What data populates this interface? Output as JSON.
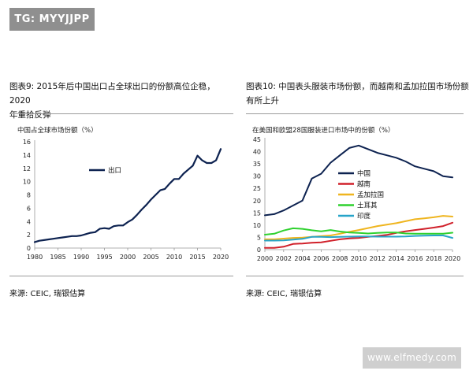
{
  "watermark": "TG: MYYJJPP",
  "website": "www.elfmedy.com",
  "left": {
    "title_line1": "图表9: 2015年后中国出口占全球出口的份额高位企稳，2020",
    "title_line2": "年重拾反弹",
    "source": "来源: CEIC, 瑞银估算"
  },
  "right": {
    "title_line1": "图表10: 中国表头服装市场份额，而越南和孟加拉国市场份额",
    "title_line2": "有所上升",
    "source": "来源: CEIC, 瑞银估算"
  },
  "chart_data": [
    {
      "type": "line",
      "title": "",
      "subtitle": "中国占全球市场份额（%）",
      "xlim": [
        1980,
        2020
      ],
      "ylim": [
        0,
        16
      ],
      "xticks": [
        1980,
        1985,
        1990,
        1995,
        2000,
        2005,
        2010,
        2015,
        2020
      ],
      "yticks": [
        0,
        2,
        4,
        6,
        8,
        10,
        12,
        14,
        16
      ],
      "grid": false,
      "legend": "center-left",
      "series": [
        {
          "name": "出口",
          "color": "#0d2250",
          "x": [
            1980,
            1981,
            1982,
            1983,
            1984,
            1985,
            1986,
            1987,
            1988,
            1989,
            1990,
            1991,
            1992,
            1993,
            1994,
            1995,
            1996,
            1997,
            1998,
            1999,
            2000,
            2001,
            2002,
            2003,
            2004,
            2005,
            2006,
            2007,
            2008,
            2009,
            2010,
            2011,
            2012,
            2013,
            2014,
            2015,
            2016,
            2017,
            2018,
            2019,
            2020
          ],
          "y": [
            0.9,
            1.1,
            1.2,
            1.3,
            1.4,
            1.5,
            1.6,
            1.7,
            1.8,
            1.8,
            1.9,
            2.1,
            2.3,
            2.4,
            2.9,
            3.0,
            2.9,
            3.3,
            3.4,
            3.4,
            3.9,
            4.3,
            5.0,
            5.8,
            6.5,
            7.3,
            8.0,
            8.7,
            8.9,
            9.7,
            10.4,
            10.4,
            11.2,
            11.8,
            12.4,
            13.9,
            13.2,
            12.8,
            12.8,
            13.2,
            14.9
          ]
        }
      ]
    },
    {
      "type": "line",
      "title": "",
      "subtitle": "在美国和欧盟28国服装进口市场中的份额（%）",
      "xlim": [
        2000,
        2020
      ],
      "ylim": [
        0,
        45
      ],
      "xticks": [
        2000,
        2002,
        2004,
        2006,
        2008,
        2010,
        2012,
        2014,
        2016,
        2018,
        2020
      ],
      "yticks": [
        0,
        5,
        10,
        15,
        20,
        25,
        30,
        35,
        40,
        45
      ],
      "grid": false,
      "legend": "center-left",
      "series": [
        {
          "name": "中国",
          "color": "#0d2250",
          "x": [
            2000,
            2001,
            2002,
            2003,
            2004,
            2005,
            2006,
            2007,
            2008,
            2009,
            2010,
            2011,
            2012,
            2013,
            2014,
            2015,
            2016,
            2017,
            2018,
            2019,
            2020
          ],
          "y": [
            14,
            14.5,
            16,
            18,
            20,
            29,
            31,
            35.5,
            38.5,
            41.5,
            42.5,
            41,
            39.5,
            38.5,
            37.5,
            36,
            34,
            33,
            32,
            30,
            29.5
          ]
        },
        {
          "name": "越南",
          "color": "#d0202a",
          "x": [
            2000,
            2001,
            2002,
            2003,
            2004,
            2005,
            2006,
            2007,
            2008,
            2009,
            2010,
            2011,
            2012,
            2013,
            2014,
            2015,
            2016,
            2017,
            2018,
            2019,
            2020
          ],
          "y": [
            0.7,
            0.7,
            1.2,
            2.3,
            2.5,
            2.8,
            3.0,
            3.6,
            4.2,
            4.6,
            4.8,
            5.2,
            5.6,
            6.0,
            6.8,
            7.5,
            8.0,
            8.5,
            9.0,
            9.6,
            11.0
          ]
        },
        {
          "name": "孟加拉国",
          "color": "#efb51f",
          "x": [
            2000,
            2001,
            2002,
            2003,
            2004,
            2005,
            2006,
            2007,
            2008,
            2009,
            2010,
            2011,
            2012,
            2013,
            2014,
            2015,
            2016,
            2017,
            2018,
            2019,
            2020
          ],
          "y": [
            4.2,
            4.2,
            4.5,
            4.8,
            4.9,
            5.2,
            5.5,
            5.8,
            6.5,
            7.3,
            8.0,
            8.8,
            9.6,
            10.2,
            10.8,
            11.6,
            12.4,
            12.8,
            13.2,
            13.8,
            13.5
          ]
        },
        {
          "name": "土耳其",
          "color": "#2fd12f",
          "x": [
            2000,
            2001,
            2002,
            2003,
            2004,
            2005,
            2006,
            2007,
            2008,
            2009,
            2010,
            2011,
            2012,
            2013,
            2014,
            2015,
            2016,
            2017,
            2018,
            2019,
            2020
          ],
          "y": [
            6.1,
            6.5,
            7.8,
            8.7,
            8.5,
            7.9,
            7.5,
            8.0,
            7.4,
            7.0,
            6.8,
            6.6,
            6.8,
            7.0,
            7.0,
            6.6,
            6.5,
            6.5,
            6.5,
            6.5,
            6.9
          ]
        },
        {
          "name": "印度",
          "color": "#27a4c9",
          "x": [
            2000,
            2001,
            2002,
            2003,
            2004,
            2005,
            2006,
            2007,
            2008,
            2009,
            2010,
            2011,
            2012,
            2013,
            2014,
            2015,
            2016,
            2017,
            2018,
            2019,
            2020
          ],
          "y": [
            3.7,
            3.7,
            3.8,
            4.1,
            4.4,
            5.2,
            5.2,
            5.1,
            5.2,
            5.3,
            5.4,
            5.4,
            5.3,
            5.3,
            5.3,
            5.4,
            5.6,
            5.7,
            5.8,
            5.8,
            4.8
          ]
        }
      ]
    }
  ]
}
